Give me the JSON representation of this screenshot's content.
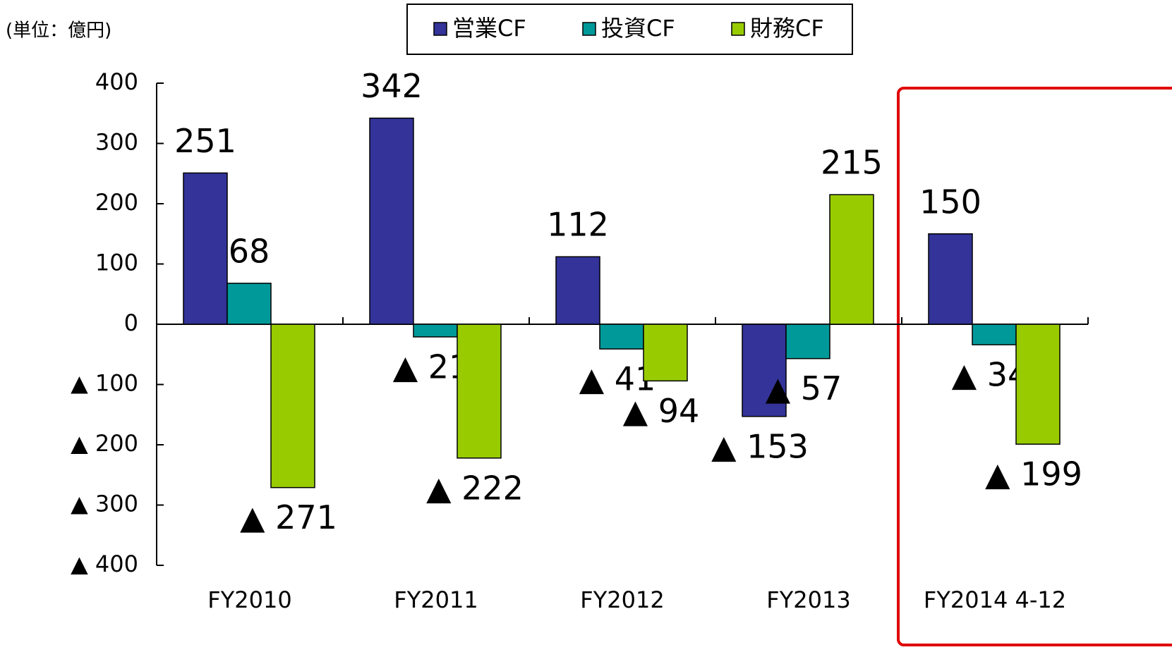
{
  "chart_data": {
    "type": "bar",
    "unit_label": "(単位：億円)",
    "categories": [
      "FY2010",
      "FY2011",
      "FY2012",
      "FY2013",
      "FY2014 4-12"
    ],
    "series": [
      {
        "name": "営業CF",
        "color": "#333399",
        "values": [
          251,
          342,
          112,
          -153,
          150
        ],
        "value_labels": [
          "251",
          "342",
          "112",
          "▲ 153",
          "150"
        ]
      },
      {
        "name": "投資CF",
        "color": "#009999",
        "values": [
          68,
          -21,
          -41,
          -57,
          -34
        ],
        "value_labels": [
          "68",
          "▲ 21",
          "▲ 41",
          "▲ 57",
          "▲ 34"
        ]
      },
      {
        "name": "財務CF",
        "color": "#99cc00",
        "values": [
          -271,
          -222,
          -94,
          215,
          -199
        ],
        "value_labels": [
          "▲ 271",
          "▲ 222",
          "▲ 94",
          "215",
          "▲ 199"
        ]
      }
    ],
    "ylim": [
      -400,
      400
    ],
    "yticks": [
      {
        "value": -400,
        "label": "▲ 400"
      },
      {
        "value": -300,
        "label": "▲ 300"
      },
      {
        "value": -200,
        "label": "▲ 200"
      },
      {
        "value": -100,
        "label": "▲ 100"
      },
      0,
      100,
      200,
      300,
      400
    ],
    "legend": "top"
  }
}
